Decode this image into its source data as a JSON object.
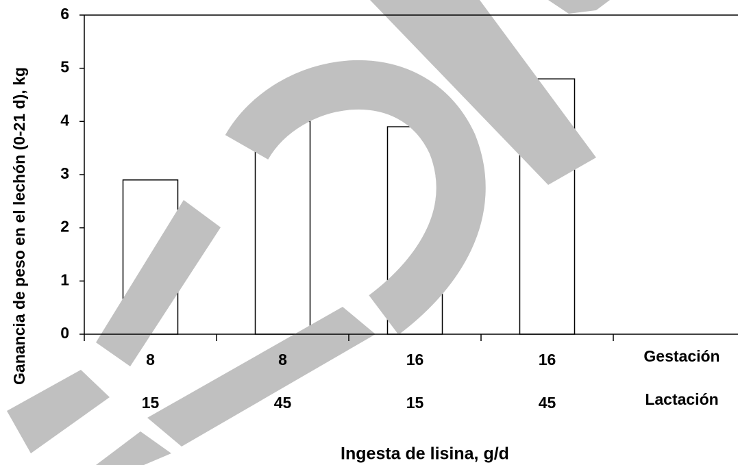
{
  "chart_data": {
    "type": "bar",
    "y_label": "Ganancia de peso en el lechón  (0-21 d), kg",
    "x_label": "Ingesta de lisina, g/d",
    "category_level_names": [
      "Gestación",
      "Lactación"
    ],
    "categories": [
      [
        "8",
        "15"
      ],
      [
        "8",
        "45"
      ],
      [
        "16",
        "15"
      ],
      [
        "16",
        "45"
      ]
    ],
    "values": [
      2.9,
      4.0,
      3.9,
      4.8
    ],
    "color": "#ffffff",
    "ylim": [
      0,
      6
    ],
    "yticks": [
      0,
      1,
      2,
      3,
      4,
      5,
      6
    ],
    "grid": false
  }
}
